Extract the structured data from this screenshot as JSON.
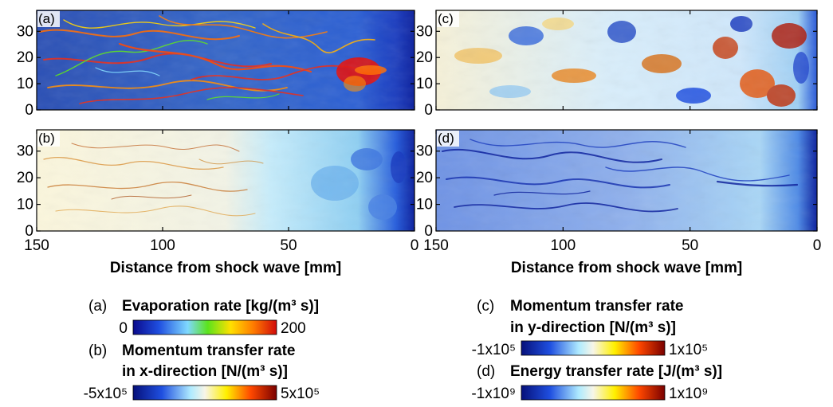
{
  "figure": {
    "panels": [
      {
        "id": "a",
        "tag": "(a)",
        "palette": "rainbow"
      },
      {
        "id": "c",
        "tag": "(c)",
        "palette": "diverging_warm"
      },
      {
        "id": "b",
        "tag": "(b)",
        "palette": "diverging_light"
      },
      {
        "id": "d",
        "tag": "(d)",
        "palette": "blue_dark"
      }
    ],
    "y_axis": {
      "ticks": [
        0,
        10,
        20,
        30
      ]
    },
    "x_axis": {
      "left_ticks": [
        150,
        100,
        50,
        0
      ],
      "right_ticks": [
        150,
        100,
        50,
        0
      ],
      "title": "Distance from shock wave [mm]"
    },
    "legends": [
      {
        "letter": "(a)",
        "title_lines": [
          "Evaporation rate [kg/(m³ s)]"
        ],
        "min": "0",
        "max": "200",
        "palette": "rainbow"
      },
      {
        "letter": "(b)",
        "title_lines": [
          "Momentum transfer rate",
          "in x-direction [N/(m³ s)]"
        ],
        "min": "-5x10⁵",
        "max": "5x10⁵",
        "palette": "diverging"
      },
      {
        "letter": "(c)",
        "title_lines": [
          "Momentum transfer rate",
          "in y-direction [N/(m³ s)]"
        ],
        "min": "-1x10⁵",
        "max": "1x10⁵",
        "palette": "diverging"
      },
      {
        "letter": "(d)",
        "title_lines": [
          "Energy transfer rate [J/(m³ s)]"
        ],
        "min": "-1x10⁹",
        "max": "1x10⁹",
        "palette": "diverging"
      }
    ],
    "colors": {
      "deep_blue": "#0a1f9e",
      "blue": "#1f4fe0",
      "cyan": "#8fe6ff",
      "pale": "#f7f5e8",
      "yellow": "#fff000",
      "orange": "#ff8c00",
      "red": "#d10a0a",
      "dark_red": "#800000",
      "green": "#5be31c"
    }
  }
}
